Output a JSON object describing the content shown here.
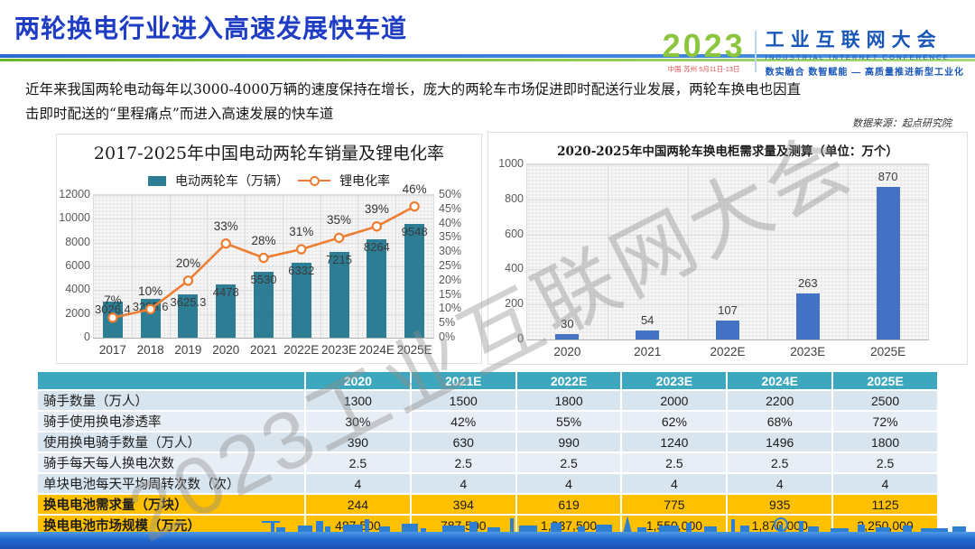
{
  "slide": {
    "title": "两轮换电行业进入高速发展快车道",
    "body_line1": "近年来我国两轮电动每年以3000-4000万辆的速度保持在增长，庞大的两轮车市场促进即时配送行业发展，两轮车换电也因直",
    "body_line2": "击即时配送的“里程痛点”而进入高速发展的快车道",
    "data_source": "数据来源：起点研究院",
    "watermark": "2023工业互联网大会"
  },
  "logo": {
    "year": "2023",
    "event_info": "中国·苏州 5月11日-13日",
    "name_cn": "工业互联网大会",
    "name_en": "INDUSTRIAL INTERNET CONFERENCE",
    "slogan": "数实融合  数智赋能 — 高质量推进新型工业化"
  },
  "chart_data": [
    {
      "type": "bar",
      "title": "2017-2025年中国电动两轮车销量及锂电化率",
      "categories": [
        "2017",
        "2018",
        "2019",
        "2020",
        "2021",
        "2022E",
        "2023E",
        "2024E",
        "2025E"
      ],
      "series": [
        {
          "name": "电动两轮车（万辆）",
          "kind": "bar",
          "axis": "left",
          "color": "#2d7e95",
          "values": [
            3026.4,
            3295.6,
            3625.3,
            4478,
            5530,
            6332,
            7215,
            8264,
            9548
          ],
          "labels": [
            "3026.4",
            "3295.6",
            "3625.3",
            "4478",
            "5530",
            "6332",
            "7215",
            "8264",
            "9548"
          ]
        },
        {
          "name": "锂电化率",
          "kind": "line",
          "axis": "right",
          "color": "#ed7d31",
          "values": [
            7,
            10,
            20,
            33,
            28,
            31,
            35,
            39,
            46
          ],
          "labels": [
            "7%",
            "10%",
            "20%",
            "33%",
            "28%",
            "31%",
            "35%",
            "39%",
            "46%"
          ]
        }
      ],
      "left_axis": {
        "min": 0,
        "max": 12000,
        "step": 2000,
        "tick_labels": [
          "12000",
          "10000",
          "8000",
          "6000",
          "4000",
          "2000",
          "0"
        ]
      },
      "right_axis": {
        "min": 0,
        "max": 50,
        "step": 5,
        "tick_labels": [
          "50%",
          "45%",
          "40%",
          "35%",
          "30%",
          "25%",
          "20%",
          "15%",
          "10%",
          "5%",
          "0%"
        ]
      },
      "grid": true,
      "legend_position": "top"
    },
    {
      "type": "bar",
      "title": "2020-2025年中国两轮车换电柜需求量及测算（单位：万个）",
      "categories": [
        "2020",
        "2021",
        "2022E",
        "2023E",
        "2025E"
      ],
      "values": [
        30,
        54,
        107,
        263,
        870
      ],
      "labels": [
        "30",
        "54",
        "107",
        "263",
        "870"
      ],
      "bar_color": "#4472c4",
      "ylabel": "",
      "xlabel": "",
      "ylim": [
        0,
        1000
      ],
      "step": 200,
      "tick_labels": [
        "1000",
        "800",
        "600",
        "400",
        "200",
        "0"
      ],
      "grid": true
    }
  ],
  "table": {
    "col_headers": [
      "",
      "2020",
      "2021E",
      "2022E",
      "2023E",
      "2024E",
      "2025E"
    ],
    "rows": [
      {
        "label": "骑手数量（万人）",
        "values": [
          "1300",
          "1500",
          "1800",
          "2000",
          "2200",
          "2500"
        ],
        "highlight": false
      },
      {
        "label": "骑手使用换电渗透率",
        "values": [
          "30%",
          "42%",
          "55%",
          "62%",
          "68%",
          "72%"
        ],
        "highlight": false
      },
      {
        "label": "使用换电骑手数量（万人）",
        "values": [
          "390",
          "630",
          "990",
          "1240",
          "1496",
          "1800"
        ],
        "highlight": false
      },
      {
        "label": "骑手每天每人换电次数",
        "values": [
          "2.5",
          "2.5",
          "2.5",
          "2.5",
          "2.5",
          "2.5"
        ],
        "highlight": false
      },
      {
        "label": "单块电池每天平均周转次数（次）",
        "values": [
          "4",
          "4",
          "4",
          "4",
          "4",
          "4"
        ],
        "highlight": false
      },
      {
        "label": "换电电池需求量（万块）",
        "values": [
          "244",
          "394",
          "619",
          "775",
          "935",
          "1125"
        ],
        "highlight": true
      },
      {
        "label": "换电电池市场规模（万元）",
        "values": [
          "487,500",
          "787,500",
          "1,237,500",
          "1,550,000",
          "1,870,000",
          "2,250,000"
        ],
        "highlight": true
      }
    ]
  },
  "colors": {
    "title_blue": "#1e3cc4",
    "bar_teal": "#2d7e95",
    "line_orange": "#ed7d31",
    "bar_blue": "#4472c4",
    "table_header": "#3da7bd",
    "table_highlight": "#ffc000",
    "footer_blue": "#2268cc",
    "logo_green": "#8cc63e"
  }
}
